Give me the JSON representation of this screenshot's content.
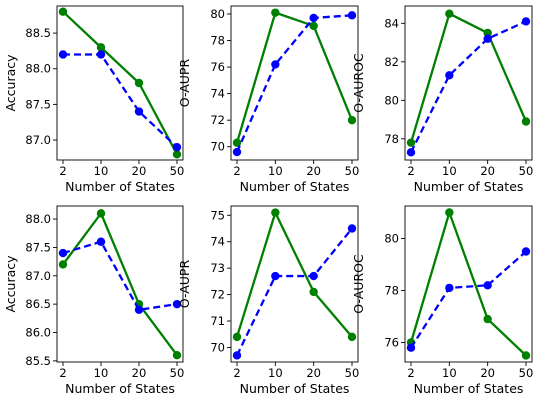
{
  "chart_data": [
    {
      "type": "line",
      "xlabel": "Number of States",
      "ylabel": "Accuracy",
      "categories": [
        "2",
        "10",
        "20",
        "50"
      ],
      "yticks": [
        "87.0",
        "87.5",
        "88.0",
        "88.5"
      ],
      "ylim": [
        86.72,
        88.88
      ],
      "series": [
        {
          "values": [
            88.8,
            88.3,
            87.8,
            86.8
          ],
          "color": "#008000",
          "dash": "solid"
        },
        {
          "values": [
            88.2,
            88.2,
            87.4,
            86.9
          ],
          "color": "#0000ff",
          "dash": "dashed"
        }
      ]
    },
    {
      "type": "line",
      "xlabel": "Number of States",
      "ylabel": "O-AUPR",
      "categories": [
        "2",
        "10",
        "20",
        "50"
      ],
      "yticks": [
        "70",
        "72",
        "74",
        "76",
        "78",
        "80"
      ],
      "ylim": [
        69.0,
        80.6
      ],
      "series": [
        {
          "values": [
            70.3,
            80.1,
            79.1,
            72.0
          ],
          "color": "#008000",
          "dash": "solid"
        },
        {
          "values": [
            69.6,
            76.2,
            79.7,
            79.9
          ],
          "color": "#0000ff",
          "dash": "dashed"
        }
      ]
    },
    {
      "type": "line",
      "xlabel": "Number of States",
      "ylabel": "O-AUROC",
      "categories": [
        "2",
        "10",
        "20",
        "50"
      ],
      "yticks": [
        "78",
        "80",
        "82",
        "84"
      ],
      "ylim": [
        76.9,
        84.9
      ],
      "series": [
        {
          "values": [
            77.8,
            84.5,
            83.5,
            78.9
          ],
          "color": "#008000",
          "dash": "solid"
        },
        {
          "values": [
            77.3,
            81.3,
            83.2,
            84.1
          ],
          "color": "#0000ff",
          "dash": "dashed"
        }
      ]
    },
    {
      "type": "line",
      "xlabel": "Number of States",
      "ylabel": "Accuracy",
      "categories": [
        "2",
        "10",
        "20",
        "50"
      ],
      "yticks": [
        "85.5",
        "86.0",
        "86.5",
        "87.0",
        "87.5",
        "88.0"
      ],
      "ylim": [
        85.48,
        88.23
      ],
      "series": [
        {
          "values": [
            87.2,
            88.1,
            86.5,
            85.6
          ],
          "color": "#008000",
          "dash": "solid"
        },
        {
          "values": [
            87.4,
            87.6,
            86.4,
            86.5
          ],
          "color": "#0000ff",
          "dash": "dashed"
        }
      ]
    },
    {
      "type": "line",
      "xlabel": "Number of States",
      "ylabel": "O-AUPR",
      "categories": [
        "2",
        "10",
        "20",
        "50"
      ],
      "yticks": [
        "70",
        "71",
        "72",
        "73",
        "74",
        "75"
      ],
      "ylim": [
        69.45,
        75.35
      ],
      "series": [
        {
          "values": [
            70.4,
            75.1,
            72.1,
            70.4
          ],
          "color": "#008000",
          "dash": "solid"
        },
        {
          "values": [
            69.7,
            72.7,
            72.7,
            74.5
          ],
          "color": "#0000ff",
          "dash": "dashed"
        }
      ]
    },
    {
      "type": "line",
      "xlabel": "Number of States",
      "ylabel": "O-AUROC",
      "categories": [
        "2",
        "10",
        "20",
        "50"
      ],
      "yticks": [
        "76",
        "78",
        "80"
      ],
      "ylim": [
        75.25,
        81.25
      ],
      "series": [
        {
          "values": [
            76.0,
            81.0,
            76.9,
            75.5
          ],
          "color": "#008000",
          "dash": "solid"
        },
        {
          "values": [
            75.8,
            78.1,
            78.2,
            79.5
          ],
          "color": "#0000ff",
          "dash": "dashed"
        }
      ]
    }
  ]
}
